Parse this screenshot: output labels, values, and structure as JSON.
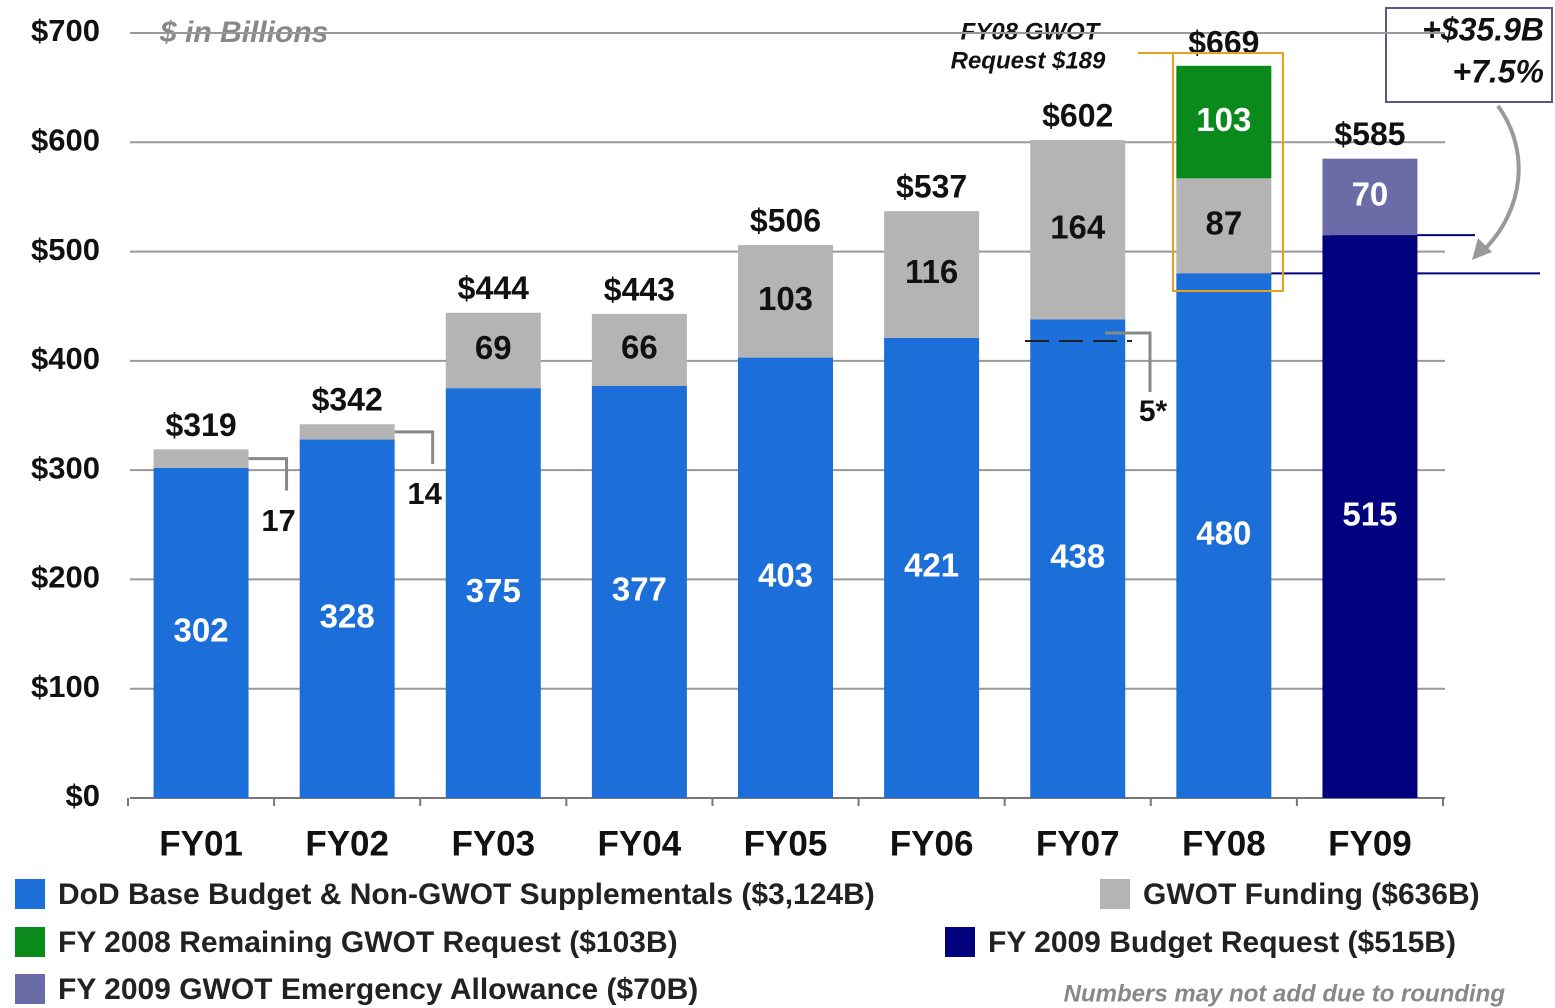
{
  "chart_data": {
    "type": "bar",
    "stacked": true,
    "subtitle": "$ in Billions",
    "categories": [
      "FY01",
      "FY02",
      "FY03",
      "FY04",
      "FY05",
      "FY06",
      "FY07",
      "FY08",
      "FY09"
    ],
    "series": [
      {
        "name": "DoD Base Budget & Non-GWOT Supplementals ($3,124B)",
        "color": "#1c6fd8",
        "values": [
          302,
          328,
          375,
          377,
          403,
          421,
          438,
          480,
          null
        ]
      },
      {
        "name": "GWOT Funding ($636B)",
        "color": "#b4b4b4",
        "values": [
          17,
          14,
          69,
          66,
          103,
          116,
          164,
          87,
          null
        ]
      },
      {
        "name": "FY 2008 Remaining GWOT Request ($103B)",
        "color": "#0b8a1c",
        "values": [
          null,
          null,
          null,
          null,
          null,
          null,
          null,
          103,
          null
        ]
      },
      {
        "name": "FY 2009 Budget Request ($515B)",
        "color": "#02027e",
        "values": [
          null,
          null,
          null,
          null,
          null,
          null,
          null,
          null,
          515
        ]
      },
      {
        "name": "FY 2009 GWOT Emergency Allowance ($70B)",
        "color": "#6b6ba8",
        "values": [
          null,
          null,
          null,
          null,
          null,
          null,
          null,
          null,
          70
        ]
      }
    ],
    "totals": [
      319,
      342,
      444,
      443,
      506,
      537,
      602,
      669,
      585
    ],
    "total_labels": [
      "$319",
      "$342",
      "$444",
      "$443",
      "$506",
      "$537",
      "$602",
      "$669",
      "$585"
    ],
    "ylim": [
      0,
      700
    ],
    "yticks": [
      {
        "value": 0,
        "label": "$0"
      },
      {
        "value": 100,
        "label": "$100"
      },
      {
        "value": 200,
        "label": "$200"
      },
      {
        "value": 300,
        "label": "$300"
      },
      {
        "value": 400,
        "label": "$400"
      },
      {
        "value": 500,
        "label": "$500"
      },
      {
        "value": 600,
        "label": "$600"
      },
      {
        "value": 700,
        "label": "$700"
      }
    ],
    "grid": true,
    "annotations": {
      "gwot_request": [
        "FY08 GWOT",
        "Request $189"
      ],
      "change": [
        "+$35.9B",
        "+7.5%"
      ],
      "fy07_note": "5*",
      "footnote": "Numbers may not add due to rounding"
    }
  }
}
